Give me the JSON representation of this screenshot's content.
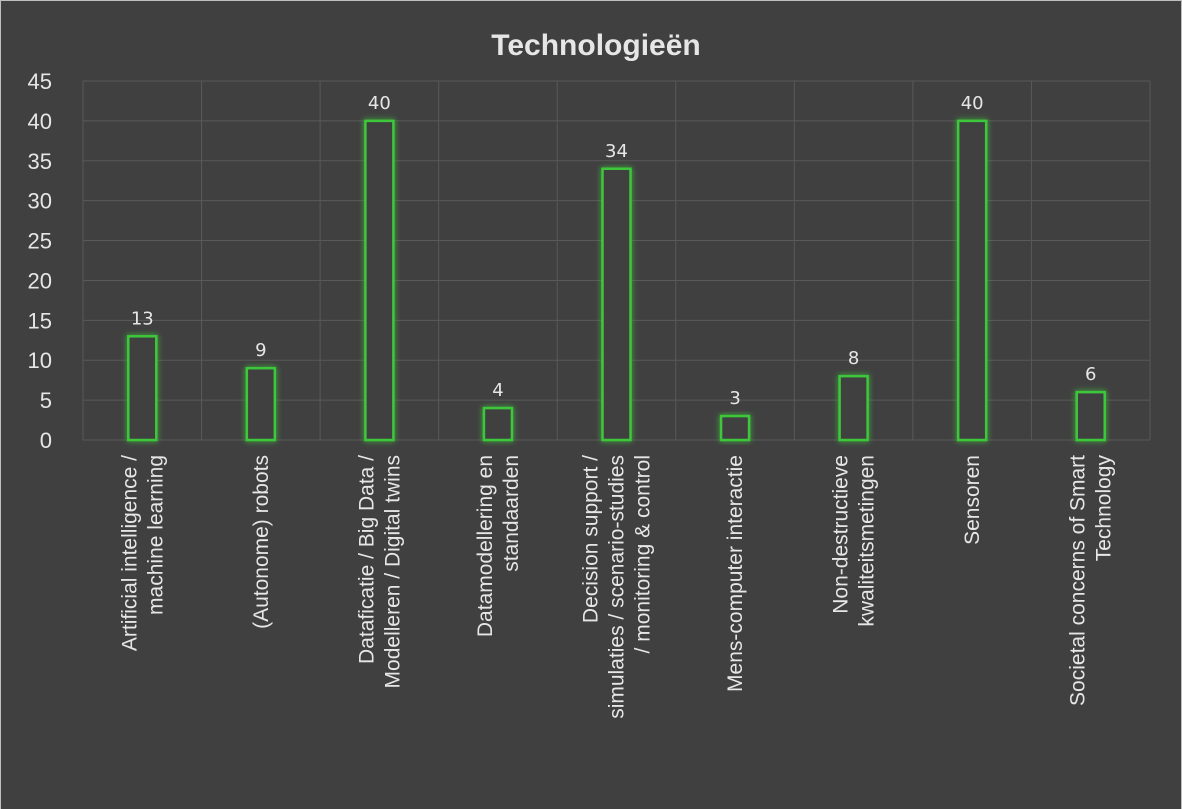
{
  "chart_data": {
    "type": "bar",
    "title": "Technologieën",
    "categories": [
      "Artificial intelligence /\nmachine learning",
      "(Autonome)  robots",
      "Dataficatie / Big Data /\nModelleren / Digital twins",
      "Datamodellering en\nstandaarden",
      "Decision support /\nsimulaties / scenario-studies\n/ monitoring & control",
      "Mens-computer interactie",
      "Non-destructieve\nkwaliteitsmetingen",
      "Sensoren",
      "Societal concerns of Smart\nTechnology"
    ],
    "values": [
      13,
      9,
      40,
      4,
      34,
      3,
      8,
      40,
      6
    ],
    "color": "#3ec83a",
    "ylim": [
      0,
      45
    ],
    "yticks": [
      0,
      5,
      10,
      15,
      20,
      25,
      30,
      35,
      40,
      45
    ],
    "grid": true
  }
}
